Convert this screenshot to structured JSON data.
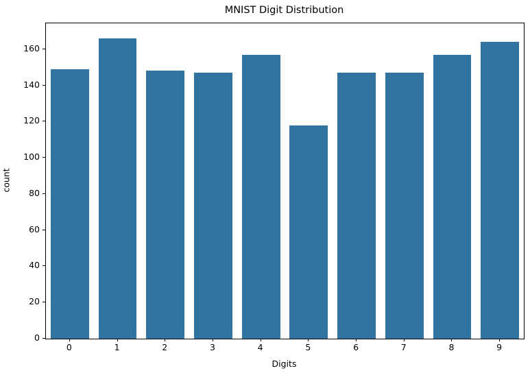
{
  "figure": {
    "background": "#ffffff"
  },
  "chart_data": {
    "type": "bar",
    "title": "MNIST Digit Distribution",
    "xlabel": "Digits",
    "ylabel": "count",
    "categories": [
      "0",
      "1",
      "2",
      "3",
      "4",
      "5",
      "6",
      "7",
      "8",
      "9"
    ],
    "values": [
      149,
      166,
      148,
      147,
      157,
      118,
      147,
      147,
      157,
      164
    ],
    "yticks": [
      0,
      20,
      40,
      60,
      80,
      100,
      120,
      140,
      160
    ],
    "ylim": [
      0,
      174.3
    ],
    "bar_color": "#3274a1",
    "spine_color": "#000000",
    "grid": false,
    "legend_position": "none",
    "bar_rel_width": 0.8
  }
}
